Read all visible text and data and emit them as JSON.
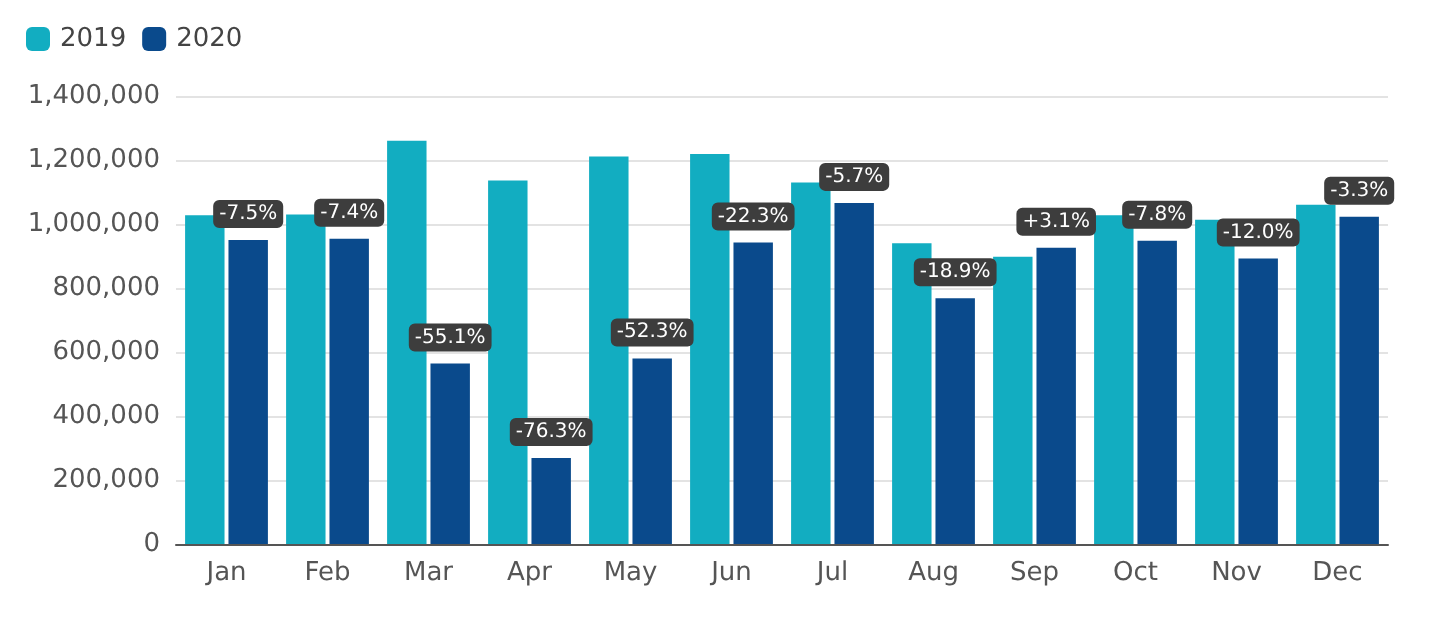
{
  "chart_data": {
    "type": "bar",
    "categories": [
      "Jan",
      "Feb",
      "Mar",
      "Apr",
      "May",
      "Jun",
      "Jul",
      "Aug",
      "Sep",
      "Oct",
      "Nov",
      "Dec"
    ],
    "series": [
      {
        "name": "2019",
        "color": "#12adc1",
        "values": [
          1027000,
          1030000,
          1260000,
          1136000,
          1211000,
          1219000,
          1130000,
          940000,
          898000,
          1027000,
          1013000,
          1060000
        ]
      },
      {
        "name": "2020",
        "color": "#0a4a8c",
        "values": [
          950000,
          954000,
          564000,
          269000,
          580000,
          942000,
          1066000,
          768000,
          926000,
          948000,
          892000,
          1023000
        ]
      }
    ],
    "annotations": [
      {
        "text": "-7.5%",
        "x": "Jan",
        "y": 950000
      },
      {
        "text": "-7.4%",
        "x": "Feb",
        "y": 954000
      },
      {
        "text": "-55.1%",
        "x": "Mar",
        "y": 564000
      },
      {
        "text": "-76.3%",
        "x": "Apr",
        "y": 269000
      },
      {
        "text": "-52.3%",
        "x": "May",
        "y": 580000
      },
      {
        "text": "-22.3%",
        "x": "Jun",
        "y": 942000
      },
      {
        "text": "-5.7%",
        "x": "Jul",
        "y": 1066000
      },
      {
        "text": "-18.9%",
        "x": "Aug",
        "y": 768000
      },
      {
        "text": "+3.1%",
        "x": "Sep",
        "y": 926000
      },
      {
        "text": "-7.8%",
        "x": "Oct",
        "y": 948000
      },
      {
        "text": "-12.0%",
        "x": "Nov",
        "y": 892000
      },
      {
        "text": "-3.3%",
        "x": "Dec",
        "y": 1023000
      }
    ],
    "ylim": [
      0,
      1400000
    ],
    "yticks": [
      {
        "value": 0,
        "label": "0"
      },
      {
        "value": 200000,
        "label": "200,000"
      },
      {
        "value": 400000,
        "label": "400,000"
      },
      {
        "value": 600000,
        "label": "600,000"
      },
      {
        "value": 800000,
        "label": "800,000"
      },
      {
        "value": 1000000,
        "label": "1,000,000"
      },
      {
        "value": 1200000,
        "label": "1,200,000"
      },
      {
        "value": 1400000,
        "label": "1,400,000"
      }
    ],
    "grid": "y",
    "legend": "top left"
  }
}
